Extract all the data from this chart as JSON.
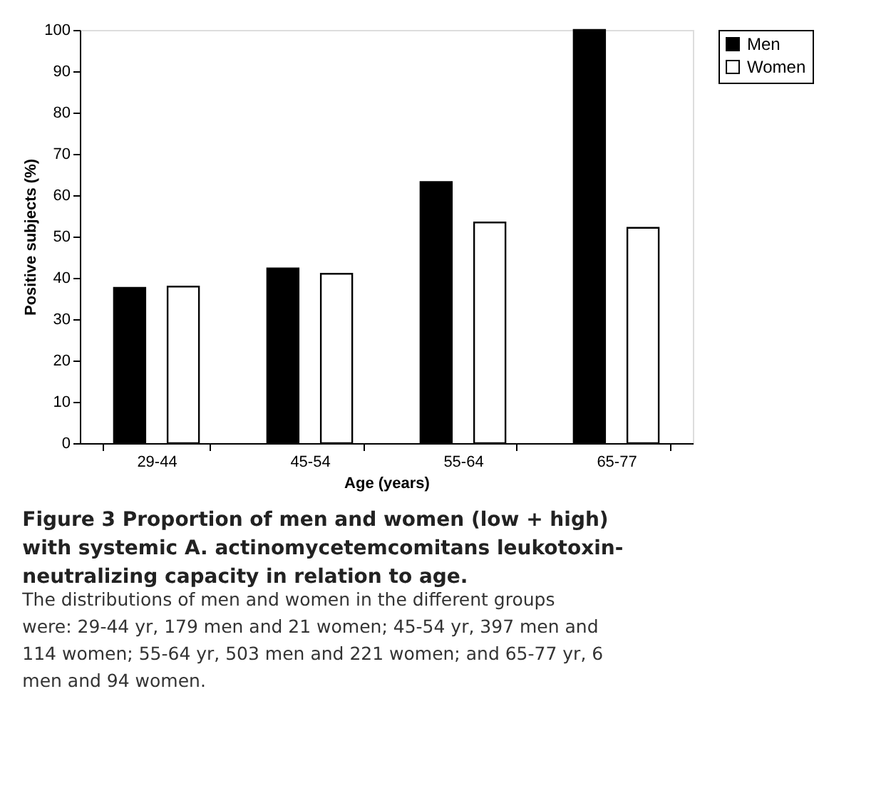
{
  "chart_data": {
    "type": "bar",
    "title": "Figure 3 Proportion of men and women (low + high) with systemic A. actinomycetemcomitans leukotoxin-neutralizing capacity in relation to age.",
    "annotations": [
      "The distributions of men and women in the different groups were: 29-44 yr, 179 men and 21 women; 45-54 yr, 397 men and 114 women; 55-64 yr, 503 men and 221 women; and 65-77 yr, 6 men and 94 women."
    ],
    "xlabel": "Age (years)",
    "ylabel": "Positive subjects (%)",
    "categories": [
      "29-44",
      "45-54",
      "55-64",
      "65-77"
    ],
    "series": [
      {
        "name": "Men",
        "color": "#000000",
        "values": [
          37.6,
          42.3,
          63.2,
          100
        ]
      },
      {
        "name": "Women",
        "color": "#ffffff",
        "values": [
          37.9,
          41.0,
          53.4,
          52.1
        ]
      }
    ],
    "ylim": [
      0,
      100
    ],
    "yticks": [
      0,
      10,
      20,
      30,
      40,
      50,
      60,
      70,
      80,
      90,
      100
    ],
    "grid": false,
    "legend": "right"
  }
}
